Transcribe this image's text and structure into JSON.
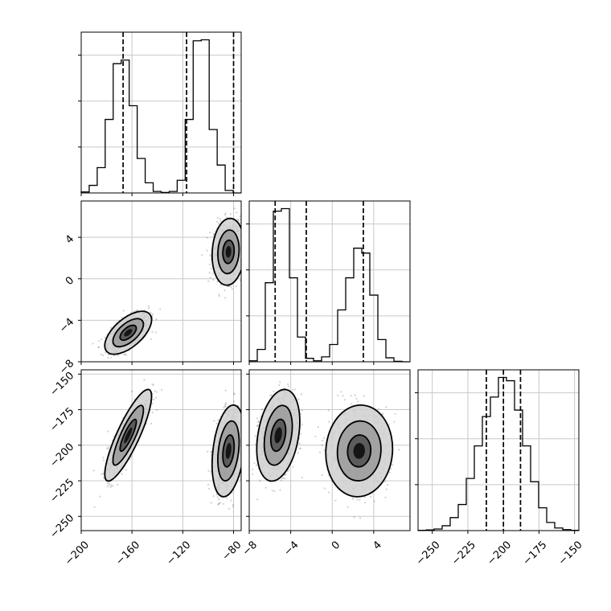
{
  "chart_data": {
    "type": "corner",
    "grid": true,
    "x_ticks": {
      "param0": [
        "−200",
        "−160",
        "−120",
        "−80"
      ],
      "param1": [
        "−8",
        "−4",
        "0",
        "4"
      ],
      "param2": [
        "−250",
        "−225",
        "−200",
        "−175",
        "−150"
      ]
    },
    "y_ticks": {
      "param1": [
        "4",
        "0",
        "−4",
        "−8"
      ],
      "param2": [
        "−150",
        "−175",
        "−200",
        "−225",
        "−250"
      ]
    },
    "ranges": {
      "param0": [
        -200,
        -74
      ],
      "param1": [
        -8,
        7.5
      ],
      "param2": [
        -260,
        -147
      ]
    },
    "quantiles": {
      "param0": [
        -167,
        -117,
        -80
      ],
      "param1": [
        -5.5,
        -2.5,
        3
      ],
      "param2": [
        -212,
        -200,
        -188
      ]
    },
    "histograms": {
      "param0": {
        "edges": [
          -200,
          -193.7,
          -187.4,
          -181.1,
          -174.8,
          -168.5,
          -162.2,
          -155.9,
          -149.6,
          -143.3,
          -137,
          -130.7,
          -124.4,
          -118.1,
          -111.8,
          -105.5,
          -99.2,
          -92.9,
          -86.6,
          -80.3,
          -74
        ],
        "counts": [
          2,
          15,
          50,
          145,
          255,
          262,
          172,
          68,
          20,
          3,
          1,
          3,
          25,
          145,
          300,
          302,
          125,
          55,
          5,
          0
        ]
      },
      "param1": {
        "edges": [
          -8,
          -7.225,
          -6.45,
          -5.675,
          -4.9,
          -4.125,
          -3.35,
          -2.575,
          -1.8,
          -1.025,
          -0.25,
          0.525,
          1.3,
          2.075,
          2.85,
          3.625,
          4.4,
          5.175,
          5.95,
          6.725,
          7.5
        ],
        "counts": [
          2,
          25,
          160,
          305,
          310,
          170,
          50,
          7,
          2,
          10,
          35,
          105,
          170,
          230,
          220,
          135,
          45,
          8,
          1,
          0
        ]
      },
      "param2": {
        "edges": [
          -260,
          -254.35,
          -248.7,
          -243.05,
          -237.4,
          -231.75,
          -226.1,
          -220.45,
          -214.8,
          -209.15,
          -203.5,
          -197.85,
          -192.2,
          -186.55,
          -180.9,
          -175.25,
          -169.6,
          -163.95,
          -158.3,
          -152.65,
          -147
        ],
        "counts": [
          1,
          2,
          5,
          15,
          40,
          80,
          160,
          260,
          350,
          410,
          470,
          460,
          370,
          260,
          150,
          70,
          25,
          8,
          3,
          1
        ]
      }
    },
    "scatter_clusters": {
      "param1_vs_param0": [
        {
          "mean_x": -163,
          "mean_y": -5.2,
          "sd_x": 8,
          "sd_y": 0.9,
          "rho": 0.6,
          "n": 800
        },
        {
          "mean_x": -84,
          "mean_y": 2.6,
          "sd_x": 5.6,
          "sd_y": 1.4,
          "rho": 0.1,
          "n": 800
        }
      ],
      "param2_vs_param0": [
        {
          "mean_x": -163,
          "mean_y": -193,
          "sd_x": 8,
          "sd_y": 14,
          "rho": 0.85,
          "n": 800
        },
        {
          "mean_x": -84,
          "mean_y": -204,
          "sd_x": 5.6,
          "sd_y": 14,
          "rho": 0.3,
          "n": 800
        }
      ],
      "param2_vs_param1": [
        {
          "mean_x": -5.2,
          "mean_y": -193,
          "sd_x": 0.9,
          "sd_y": 14,
          "rho": 0.3,
          "n": 800
        },
        {
          "mean_x": 2.6,
          "mean_y": -204,
          "sd_x": 1.4,
          "sd_y": 14,
          "rho": 0.05,
          "n": 800
        }
      ]
    },
    "contour_levels_sigma": [
      0.8,
      1.5,
      2.3
    ]
  }
}
